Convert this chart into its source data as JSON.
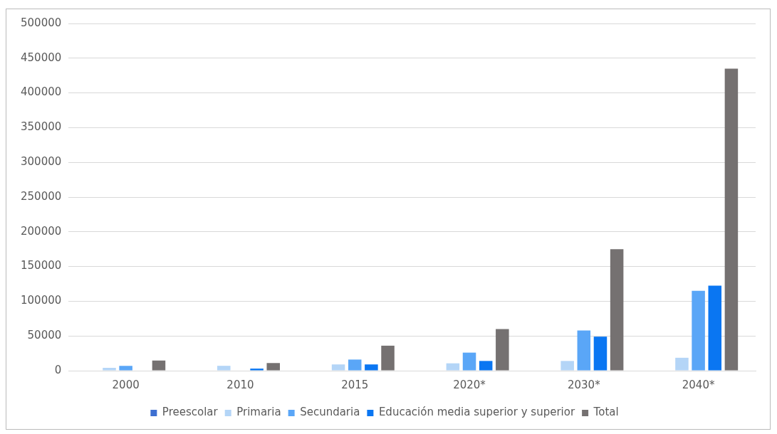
{
  "chart_data": {
    "type": "bar",
    "categories": [
      "2000",
      "2010",
      "2015",
      "2020*",
      "2030*",
      "2040*"
    ],
    "series": [
      {
        "name": "Preescolar",
        "color": "#3d6fd1",
        "values": [
          0,
          0,
          0,
          0,
          0,
          0
        ]
      },
      {
        "name": "Primaria",
        "color": "#b4d5f7",
        "values": [
          4000,
          7000,
          9000,
          10600,
          14000,
          18600
        ]
      },
      {
        "name": "Secundaria",
        "color": "#5aa6f7",
        "values": [
          7000,
          0,
          16000,
          26000,
          58000,
          115000
        ]
      },
      {
        "name": "Educación media superior y superior",
        "color": "#0a76f2",
        "values": [
          0,
          3000,
          9000,
          14000,
          49000,
          122500
        ]
      },
      {
        "name": "Total",
        "color": "#757171",
        "values": [
          14500,
          11000,
          36000,
          60000,
          175000,
          435000
        ]
      }
    ],
    "ylim": [
      0,
      500000
    ],
    "yticks": [
      0,
      50000,
      100000,
      150000,
      200000,
      250000,
      300000,
      350000,
      400000,
      450000,
      500000
    ],
    "grid": "y",
    "legend": "bottom"
  }
}
